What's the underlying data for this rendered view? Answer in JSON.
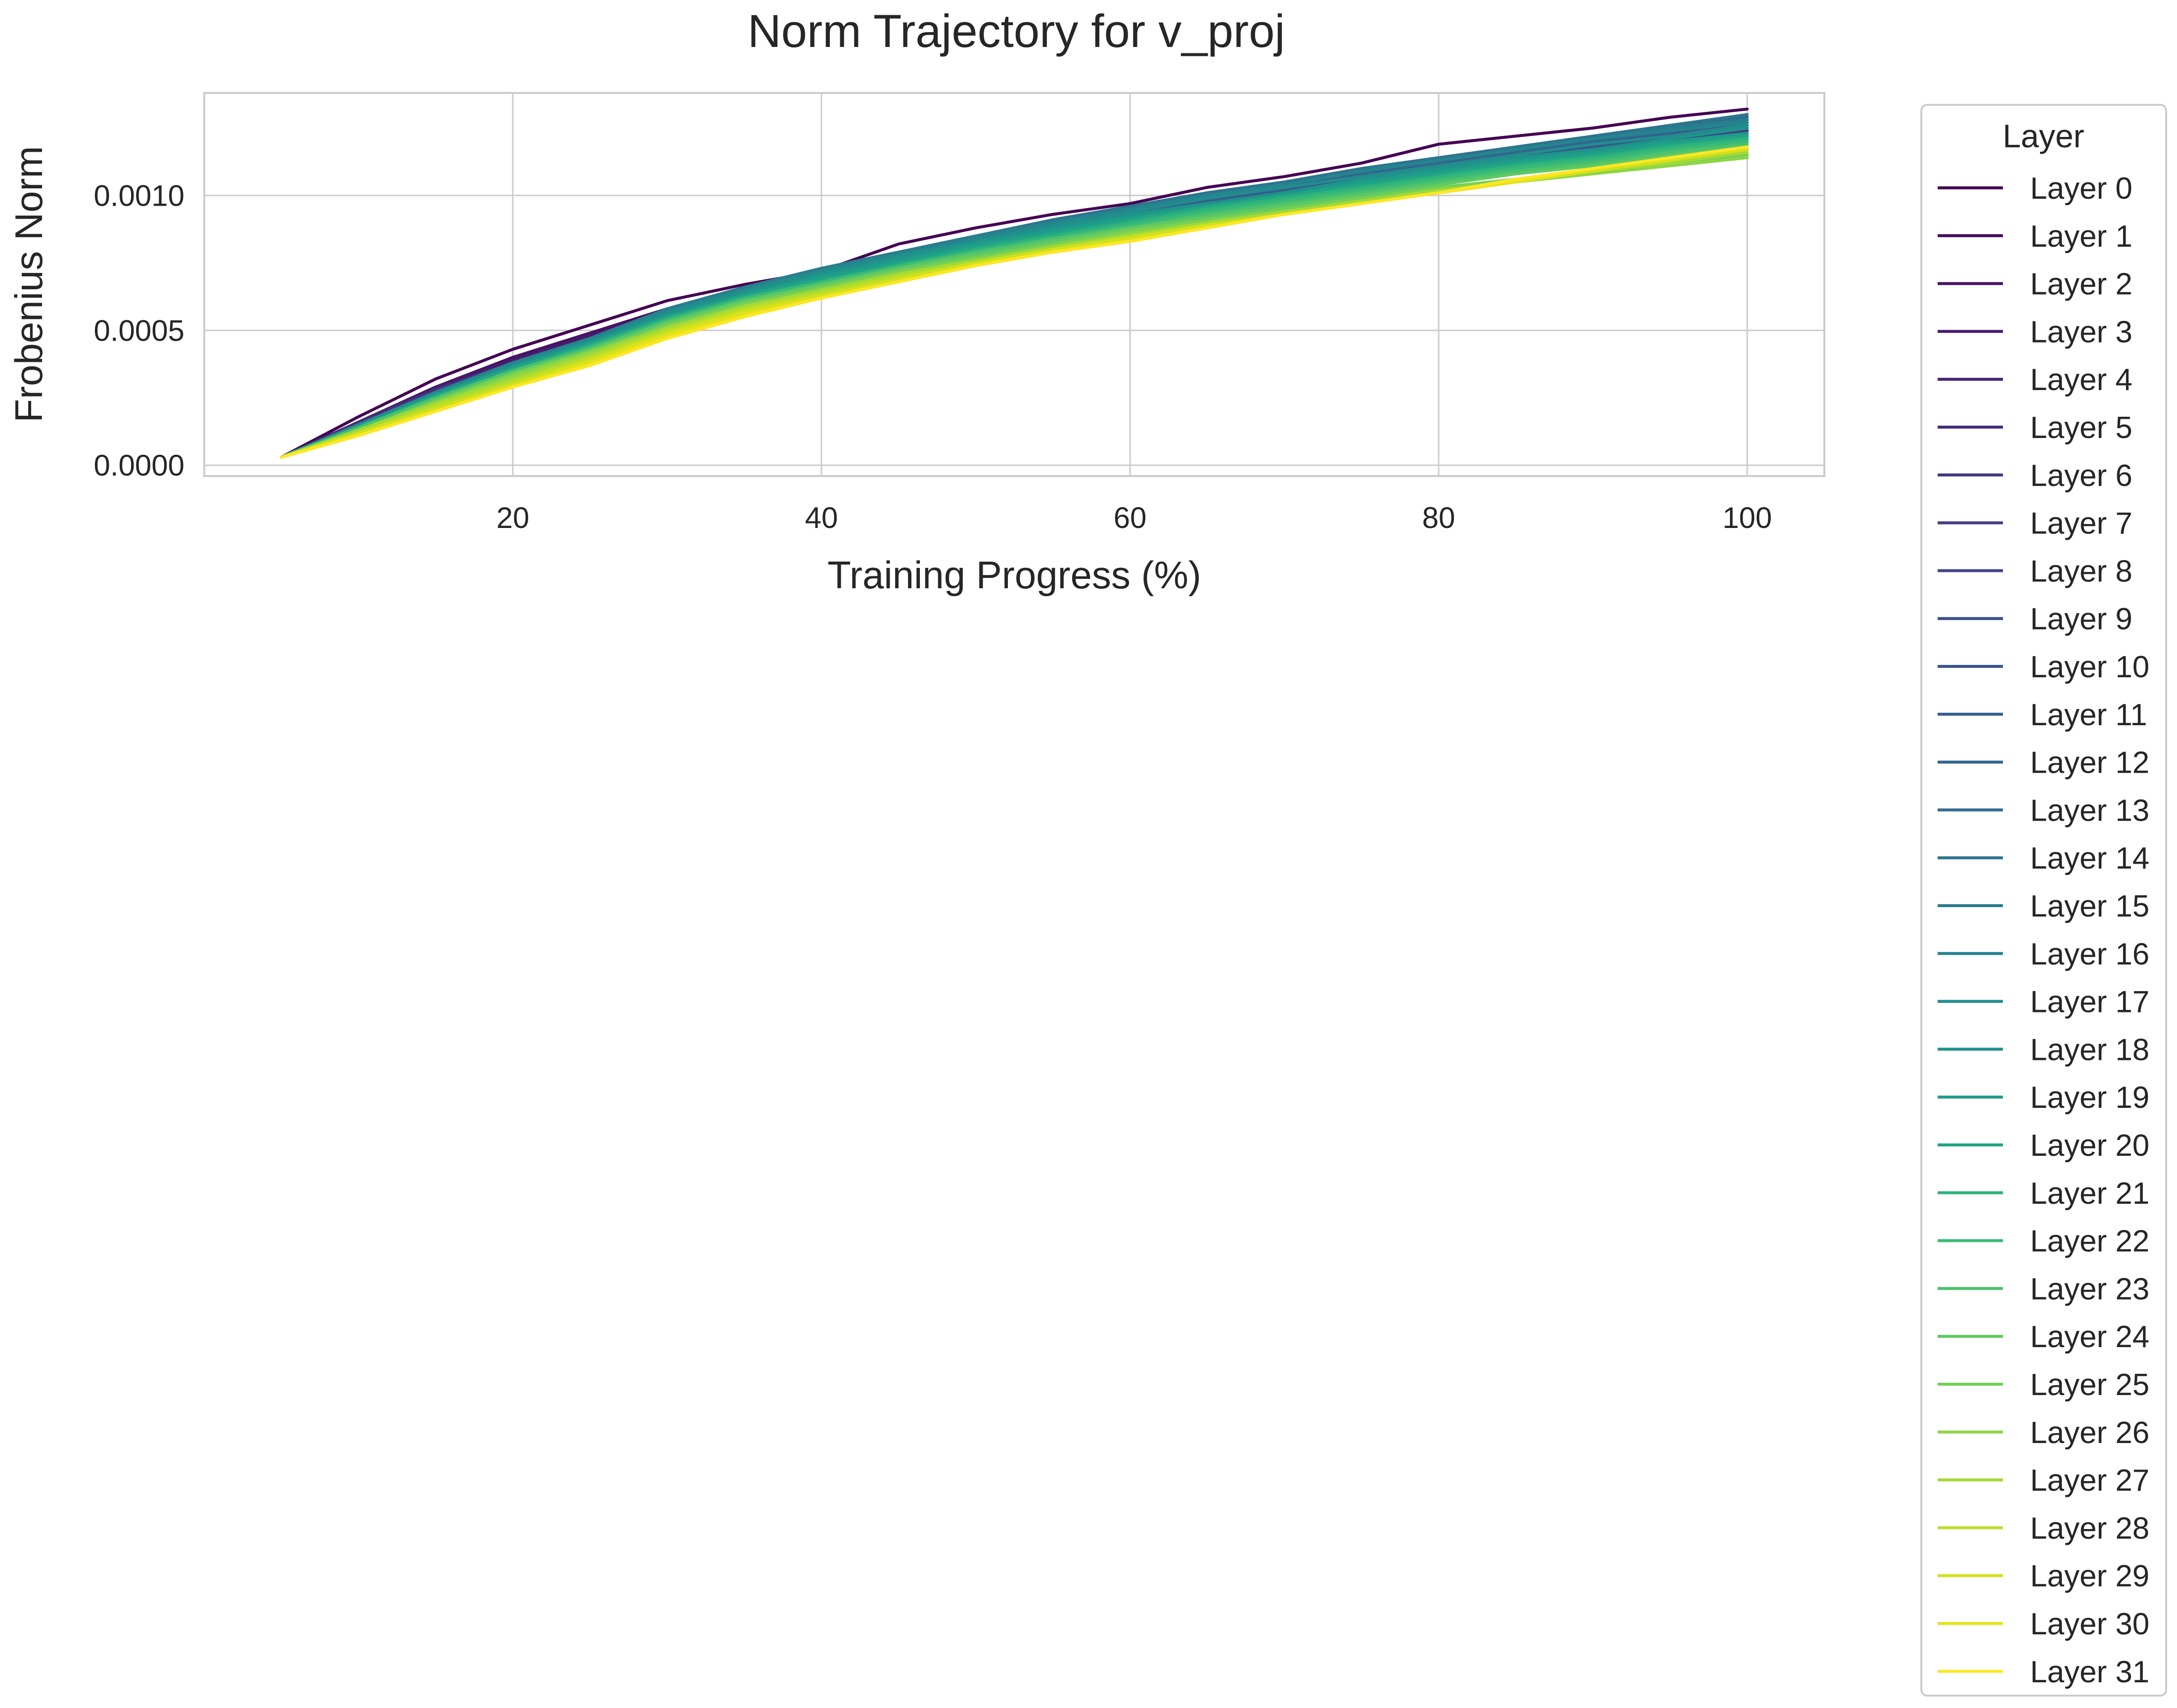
{
  "chart_data": {
    "type": "line",
    "title": "Norm Trajectory for v_proj",
    "xlabel": "Training Progress (%)",
    "ylabel": "Frobenius Norm",
    "xlim": [
      0,
      105
    ],
    "ylim": [
      -4e-05,
      0.00138
    ],
    "xticks": [
      20,
      40,
      60,
      80,
      100
    ],
    "yticks": [
      0.0,
      0.0005,
      0.001
    ],
    "ytick_labels": [
      "0.0000",
      "0.0005",
      "0.0010"
    ],
    "grid": true,
    "legend": {
      "title": "Layer",
      "position": "outside-right"
    },
    "x": [
      5,
      10,
      15,
      20,
      25,
      30,
      35,
      40,
      45,
      50,
      55,
      60,
      65,
      70,
      75,
      80,
      85,
      90,
      95,
      100
    ],
    "series": [
      {
        "name": "Layer 0",
        "color": "#440154",
        "values": [
          3e-05,
          0.00018,
          0.00032,
          0.00043,
          0.00052,
          0.00061,
          0.00067,
          0.00072,
          0.00082,
          0.00088,
          0.00093,
          0.00097,
          0.00103,
          0.00107,
          0.00112,
          0.00119,
          0.00122,
          0.00125,
          0.00129,
          0.00132
        ]
      },
      {
        "name": "Layer 1",
        "color": "#460a5d",
        "values": [
          3e-05,
          0.00016,
          0.00029,
          0.0004,
          0.00049,
          0.00058,
          0.00064,
          0.0007,
          0.00076,
          0.00081,
          0.00086,
          0.0009,
          0.00094,
          0.00098,
          0.00102,
          0.00107,
          0.00111,
          0.00115,
          0.00118,
          0.00122
        ]
      },
      {
        "name": "Layer 2",
        "color": "#471365",
        "values": [
          3e-05,
          0.00016,
          0.00029,
          0.0004,
          0.00049,
          0.00057,
          0.00063,
          0.00069,
          0.00075,
          0.0008,
          0.00085,
          0.00089,
          0.00093,
          0.00098,
          0.00102,
          0.00106,
          0.0011,
          0.00114,
          0.00118,
          0.00121
        ]
      },
      {
        "name": "Layer 3",
        "color": "#481b6d",
        "values": [
          3e-05,
          0.00016,
          0.00029,
          0.00039,
          0.00048,
          0.00057,
          0.00063,
          0.00069,
          0.00075,
          0.00081,
          0.00085,
          0.0009,
          0.00094,
          0.00099,
          0.00103,
          0.00108,
          0.00112,
          0.00116,
          0.0012,
          0.00124
        ]
      },
      {
        "name": "Layer 4",
        "color": "#482374",
        "values": [
          3e-05,
          0.00016,
          0.00028,
          0.00038,
          0.00047,
          0.00056,
          0.00063,
          0.00069,
          0.00074,
          0.0008,
          0.00085,
          0.00089,
          0.00093,
          0.00098,
          0.00102,
          0.00107,
          0.00111,
          0.00115,
          0.00119,
          0.00123
        ]
      },
      {
        "name": "Layer 5",
        "color": "#472d7b",
        "values": [
          3e-05,
          0.00016,
          0.00028,
          0.00038,
          0.00047,
          0.00056,
          0.00063,
          0.00069,
          0.00075,
          0.00081,
          0.00086,
          0.0009,
          0.00095,
          0.00099,
          0.00103,
          0.00108,
          0.00112,
          0.00116,
          0.0012,
          0.00124
        ]
      },
      {
        "name": "Layer 6",
        "color": "#453581",
        "values": [
          3e-05,
          0.00015,
          0.00028,
          0.00038,
          0.00047,
          0.00056,
          0.00063,
          0.00069,
          0.00075,
          0.00081,
          0.00086,
          0.0009,
          0.00095,
          0.00099,
          0.00104,
          0.00108,
          0.00112,
          0.00116,
          0.0012,
          0.00124
        ]
      },
      {
        "name": "Layer 7",
        "color": "#433e85",
        "values": [
          3e-05,
          0.00015,
          0.00027,
          0.00037,
          0.00046,
          0.00055,
          0.00062,
          0.00069,
          0.00075,
          0.0008,
          0.00086,
          0.0009,
          0.00095,
          0.00099,
          0.00104,
          0.00108,
          0.00112,
          0.00116,
          0.0012,
          0.00124
        ]
      },
      {
        "name": "Layer 8",
        "color": "#404688",
        "values": [
          3e-05,
          0.00015,
          0.00027,
          0.00037,
          0.00046,
          0.00055,
          0.00063,
          0.00069,
          0.00075,
          0.00081,
          0.00086,
          0.00091,
          0.00096,
          0.001,
          0.00105,
          0.00109,
          0.00113,
          0.00117,
          0.00121,
          0.00125
        ]
      },
      {
        "name": "Layer 9",
        "color": "#3d4e8a",
        "values": [
          3e-05,
          0.00015,
          0.00027,
          0.00037,
          0.00046,
          0.00055,
          0.00062,
          0.00069,
          0.00075,
          0.00081,
          0.00086,
          0.00091,
          0.00096,
          0.001,
          0.00105,
          0.00109,
          0.00113,
          0.00117,
          0.00121,
          0.00125
        ]
      },
      {
        "name": "Layer 10",
        "color": "#39568c",
        "values": [
          3e-05,
          0.00015,
          0.00027,
          0.00037,
          0.00046,
          0.00056,
          0.00063,
          0.0007,
          0.00076,
          0.00082,
          0.00087,
          0.00092,
          0.00097,
          0.00101,
          0.00106,
          0.0011,
          0.00114,
          0.00118,
          0.00122,
          0.00126
        ]
      },
      {
        "name": "Layer 11",
        "color": "#355f8d",
        "values": [
          3e-05,
          0.00015,
          0.00027,
          0.00037,
          0.00046,
          0.00056,
          0.00064,
          0.00071,
          0.00077,
          0.00083,
          0.00088,
          0.00093,
          0.00098,
          0.00102,
          0.00107,
          0.00111,
          0.00115,
          0.00119,
          0.00123,
          0.00127
        ]
      },
      {
        "name": "Layer 12",
        "color": "#32658e",
        "values": [
          3e-05,
          0.00015,
          0.00027,
          0.00037,
          0.00046,
          0.00056,
          0.00064,
          0.00071,
          0.00077,
          0.00083,
          0.00089,
          0.00094,
          0.00099,
          0.00103,
          0.00108,
          0.00112,
          0.00116,
          0.0012,
          0.00124,
          0.00128
        ]
      },
      {
        "name": "Layer 13",
        "color": "#2e6e8e",
        "values": [
          3e-05,
          0.00015,
          0.00027,
          0.00037,
          0.00046,
          0.00057,
          0.00065,
          0.00072,
          0.00078,
          0.00084,
          0.0009,
          0.00095,
          0.001,
          0.00104,
          0.00109,
          0.00113,
          0.00117,
          0.00121,
          0.00125,
          0.00129
        ]
      },
      {
        "name": "Layer 14",
        "color": "#2b758e",
        "values": [
          3e-05,
          0.00015,
          0.00027,
          0.00038,
          0.00047,
          0.00058,
          0.00066,
          0.00073,
          0.00079,
          0.00085,
          0.00091,
          0.00096,
          0.00101,
          0.00105,
          0.0011,
          0.00114,
          0.00118,
          0.00122,
          0.00126,
          0.0013
        ]
      },
      {
        "name": "Layer 15",
        "color": "#287d8e",
        "values": [
          3e-05,
          0.00015,
          0.00027,
          0.00038,
          0.00047,
          0.00058,
          0.00066,
          0.00073,
          0.00079,
          0.00085,
          0.0009,
          0.00095,
          0.001,
          0.00104,
          0.00109,
          0.00113,
          0.00117,
          0.00121,
          0.00125,
          0.00128
        ]
      },
      {
        "name": "Layer 16",
        "color": "#25848e",
        "values": [
          3e-05,
          0.00015,
          0.00027,
          0.00038,
          0.00047,
          0.00057,
          0.00065,
          0.00072,
          0.00078,
          0.00084,
          0.0009,
          0.00095,
          0.001,
          0.00104,
          0.00109,
          0.00113,
          0.00117,
          0.00121,
          0.00124,
          0.00127
        ]
      },
      {
        "name": "Layer 17",
        "color": "#228c8d",
        "values": [
          3e-05,
          0.00015,
          0.00027,
          0.00037,
          0.00046,
          0.00057,
          0.00065,
          0.00072,
          0.00078,
          0.00083,
          0.00089,
          0.00094,
          0.00099,
          0.00103,
          0.00107,
          0.00111,
          0.00115,
          0.00119,
          0.00122,
          0.00126
        ]
      },
      {
        "name": "Layer 18",
        "color": "#1f938b",
        "values": [
          3e-05,
          0.00015,
          0.00026,
          0.00037,
          0.00046,
          0.00056,
          0.00064,
          0.00071,
          0.00077,
          0.00083,
          0.00088,
          0.00093,
          0.00097,
          0.00101,
          0.00106,
          0.0011,
          0.00114,
          0.00117,
          0.00121,
          0.00125
        ]
      },
      {
        "name": "Layer 19",
        "color": "#1e9b8a",
        "values": [
          3e-05,
          0.00014,
          0.00026,
          0.00036,
          0.00045,
          0.00055,
          0.00063,
          0.0007,
          0.00076,
          0.00082,
          0.00087,
          0.00092,
          0.00096,
          0.001,
          0.00105,
          0.00109,
          0.00113,
          0.00116,
          0.0012,
          0.00123
        ]
      },
      {
        "name": "Layer 20",
        "color": "#21a585",
        "values": [
          3e-05,
          0.00014,
          0.00026,
          0.00036,
          0.00045,
          0.00055,
          0.00063,
          0.00069,
          0.00075,
          0.00081,
          0.00086,
          0.00091,
          0.00096,
          0.001,
          0.00104,
          0.00108,
          0.00112,
          0.00115,
          0.00119,
          0.00122
        ]
      },
      {
        "name": "Layer 21",
        "color": "#2eb37c",
        "values": [
          3e-05,
          0.00014,
          0.00025,
          0.00035,
          0.00044,
          0.00054,
          0.00062,
          0.00068,
          0.00074,
          0.0008,
          0.00085,
          0.0009,
          0.00095,
          0.00099,
          0.00103,
          0.00107,
          0.00111,
          0.00114,
          0.00118,
          0.00121
        ]
      },
      {
        "name": "Layer 22",
        "color": "#3aba76",
        "values": [
          3e-05,
          0.00014,
          0.00025,
          0.00035,
          0.00044,
          0.00054,
          0.00062,
          0.00068,
          0.00074,
          0.00079,
          0.00084,
          0.00089,
          0.00094,
          0.00098,
          0.00102,
          0.00106,
          0.0011,
          0.00113,
          0.00117,
          0.0012
        ]
      },
      {
        "name": "Layer 23",
        "color": "#4cc26c",
        "values": [
          3e-05,
          0.00014,
          0.00025,
          0.00035,
          0.00043,
          0.00053,
          0.00061,
          0.00067,
          0.00073,
          0.00079,
          0.00084,
          0.00088,
          0.00093,
          0.00097,
          0.00101,
          0.00105,
          0.00109,
          0.00112,
          0.00116,
          0.00119
        ]
      },
      {
        "name": "Layer 24",
        "color": "#5ec962",
        "values": [
          3e-05,
          0.00013,
          0.00024,
          0.00034,
          0.00043,
          0.00053,
          0.00061,
          0.00067,
          0.00073,
          0.00078,
          0.00083,
          0.00088,
          0.00092,
          0.00096,
          0.001,
          0.00104,
          0.00108,
          0.00111,
          0.00115,
          0.00118
        ]
      },
      {
        "name": "Layer 25",
        "color": "#75d054",
        "values": [
          3e-05,
          0.00013,
          0.00024,
          0.00034,
          0.00042,
          0.00052,
          0.0006,
          0.00066,
          0.00072,
          0.00077,
          0.00082,
          0.00087,
          0.00091,
          0.00095,
          0.00099,
          0.00103,
          0.00106,
          0.00109,
          0.00112,
          0.00115
        ]
      },
      {
        "name": "Layer 26",
        "color": "#8bd646",
        "values": [
          3e-05,
          0.00013,
          0.00023,
          0.00033,
          0.00042,
          0.00051,
          0.00059,
          0.00065,
          0.00071,
          0.00076,
          0.00081,
          0.00086,
          0.0009,
          0.00094,
          0.00098,
          0.00102,
          0.00105,
          0.00108,
          0.00111,
          0.00114
        ]
      },
      {
        "name": "Layer 27",
        "color": "#a2da37",
        "values": [
          3e-05,
          0.00013,
          0.00023,
          0.00032,
          0.00041,
          0.00051,
          0.00059,
          0.00065,
          0.00071,
          0.00076,
          0.00081,
          0.00085,
          0.0009,
          0.00094,
          0.00098,
          0.00102,
          0.00105,
          0.00109,
          0.00112,
          0.00116
        ]
      },
      {
        "name": "Layer 28",
        "color": "#bade28",
        "values": [
          3e-05,
          0.00012,
          0.00022,
          0.00031,
          0.0004,
          0.0005,
          0.00058,
          0.00064,
          0.0007,
          0.00075,
          0.0008,
          0.00085,
          0.00089,
          0.00093,
          0.00097,
          0.00101,
          0.00105,
          0.00109,
          0.00113,
          0.00117
        ]
      },
      {
        "name": "Layer 29",
        "color": "#d2e21b",
        "values": [
          3e-05,
          0.00012,
          0.00021,
          0.0003,
          0.00039,
          0.00049,
          0.00057,
          0.00063,
          0.00069,
          0.00075,
          0.0008,
          0.00084,
          0.00089,
          0.00093,
          0.00097,
          0.00101,
          0.00105,
          0.00109,
          0.00113,
          0.00117
        ]
      },
      {
        "name": "Layer 30",
        "color": "#e5e419",
        "values": [
          3e-05,
          0.00011,
          0.0002,
          0.00029,
          0.00038,
          0.00048,
          0.00056,
          0.00062,
          0.00068,
          0.00074,
          0.00079,
          0.00083,
          0.00088,
          0.00093,
          0.00097,
          0.00101,
          0.00105,
          0.0011,
          0.00114,
          0.00118
        ]
      },
      {
        "name": "Layer 31",
        "color": "#fde725",
        "values": [
          3e-05,
          0.00011,
          0.0002,
          0.00029,
          0.00037,
          0.00047,
          0.00055,
          0.00062,
          0.00068,
          0.00074,
          0.00079,
          0.00083,
          0.00088,
          0.00093,
          0.00097,
          0.00101,
          0.00106,
          0.0011,
          0.00114,
          0.00118
        ]
      }
    ]
  }
}
